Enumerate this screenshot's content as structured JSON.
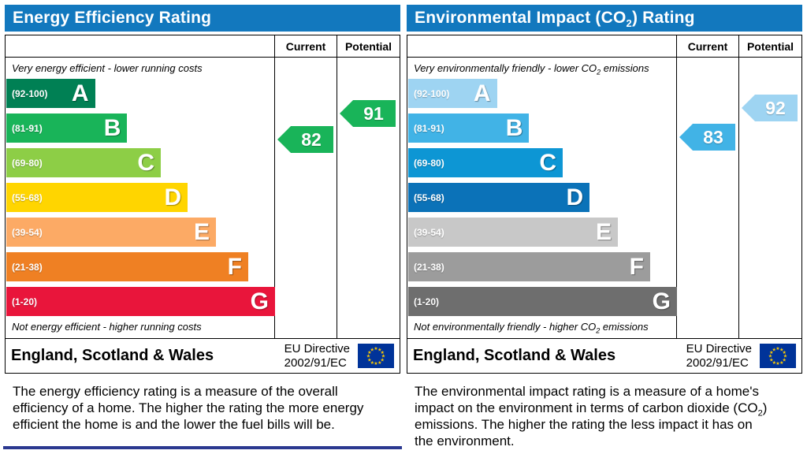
{
  "page": {
    "title_bar_color": "#1278be",
    "bottom_rule_color": "#2b3990"
  },
  "flag": {
    "background": "#003399",
    "star": "#ffcc00"
  },
  "chart_data": [
    {
      "type": "bar",
      "name": "energy-efficiency-rating",
      "title_parts": {
        "prefix": "Energy Efficiency Rating",
        "sub": "",
        "suffix": ""
      },
      "columns": {
        "current": "Current",
        "potential": "Potential"
      },
      "caption_top_parts": {
        "prefix": "Very energy efficient - lower running costs",
        "sub": "",
        "suffix": ""
      },
      "caption_bottom_parts": {
        "prefix": "Not energy efficient - higher running costs",
        "sub": "",
        "suffix": ""
      },
      "bands": [
        {
          "letter": "A",
          "range_label": "(92-100)",
          "min": 92,
          "max": 100,
          "color": "#008054",
          "width_pct": 33
        },
        {
          "letter": "B",
          "range_label": "(81-91)",
          "min": 81,
          "max": 91,
          "color": "#19b459",
          "width_pct": 45
        },
        {
          "letter": "C",
          "range_label": "(69-80)",
          "min": 69,
          "max": 80,
          "color": "#8dce46",
          "width_pct": 57.5
        },
        {
          "letter": "D",
          "range_label": "(55-68)",
          "min": 55,
          "max": 68,
          "color": "#ffd500",
          "width_pct": 67.5
        },
        {
          "letter": "E",
          "range_label": "(39-54)",
          "min": 39,
          "max": 54,
          "color": "#fcaa65",
          "width_pct": 78
        },
        {
          "letter": "F",
          "range_label": "(21-38)",
          "min": 21,
          "max": 38,
          "color": "#ef8023",
          "width_pct": 90
        },
        {
          "letter": "G",
          "range_label": "(1-20)",
          "min": 1,
          "max": 20,
          "color": "#e9153b",
          "width_pct": 100
        }
      ],
      "current": {
        "value": 82,
        "color": "#19b459"
      },
      "potential": {
        "value": 91,
        "color": "#19b459"
      },
      "footer": {
        "region": "England, Scotland & Wales",
        "directive_line1": "EU Directive",
        "directive_line2": "2002/91/EC"
      },
      "description_parts": {
        "prefix": "The energy efficiency rating is a measure of the overall efficiency of a home. The higher the rating the more energy efficient the home is and the lower the fuel bills will be.",
        "sub": "",
        "suffix": ""
      }
    },
    {
      "type": "bar",
      "name": "environmental-impact-co2-rating",
      "title_parts": {
        "prefix": "Environmental Impact (CO",
        "sub": "2",
        "suffix": ") Rating"
      },
      "columns": {
        "current": "Current",
        "potential": "Potential"
      },
      "caption_top_parts": {
        "prefix": "Very environmentally friendly - lower CO",
        "sub": "2",
        "suffix": " emissions"
      },
      "caption_bottom_parts": {
        "prefix": "Not environmentally friendly - higher CO",
        "sub": "2",
        "suffix": " emissions"
      },
      "bands": [
        {
          "letter": "A",
          "range_label": "(92-100)",
          "min": 92,
          "max": 100,
          "color": "#9ed4f2",
          "width_pct": 33
        },
        {
          "letter": "B",
          "range_label": "(81-91)",
          "min": 81,
          "max": 91,
          "color": "#41b3e6",
          "width_pct": 45
        },
        {
          "letter": "C",
          "range_label": "(69-80)",
          "min": 69,
          "max": 80,
          "color": "#0d96d4",
          "width_pct": 57.5
        },
        {
          "letter": "D",
          "range_label": "(55-68)",
          "min": 55,
          "max": 68,
          "color": "#0b72b8",
          "width_pct": 67.5
        },
        {
          "letter": "E",
          "range_label": "(39-54)",
          "min": 39,
          "max": 54,
          "color": "#c8c8c8",
          "width_pct": 78
        },
        {
          "letter": "F",
          "range_label": "(21-38)",
          "min": 21,
          "max": 38,
          "color": "#9c9c9c",
          "width_pct": 90
        },
        {
          "letter": "G",
          "range_label": "(1-20)",
          "min": 1,
          "max": 20,
          "color": "#6e6e6e",
          "width_pct": 100
        }
      ],
      "current": {
        "value": 83,
        "color": "#41b3e6"
      },
      "potential": {
        "value": 92,
        "color": "#9ed4f2"
      },
      "footer": {
        "region": "England, Scotland & Wales",
        "directive_line1": "EU Directive",
        "directive_line2": "2002/91/EC"
      },
      "description_parts": {
        "prefix": "The environmental impact rating is a measure of a home's impact on the environment in terms of carbon dioxide (CO",
        "sub": "2",
        "suffix": ") emissions. The higher the rating the less impact it has on the environment."
      }
    }
  ]
}
